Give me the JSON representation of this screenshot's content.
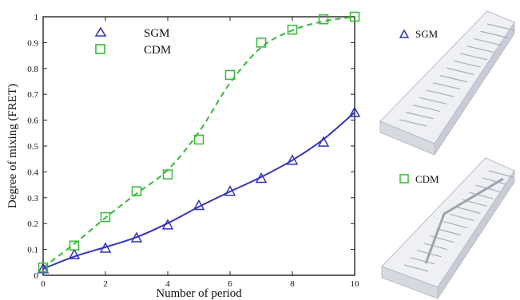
{
  "chart_data": {
    "type": "scatter",
    "xlabel": "Number of period",
    "ylabel": "Degree of mixing (FRET)",
    "xlim": [
      0,
      10
    ],
    "ylim": [
      0,
      1
    ],
    "x_ticks": [
      "0",
      "2",
      "4",
      "6",
      "8",
      "10"
    ],
    "y_ticks": [
      "0",
      "0.1",
      "0.2",
      "0.3",
      "0.4",
      "0.5",
      "0.6",
      "0.7",
      "0.8",
      "0.9",
      "1"
    ],
    "legend_position": "top-left",
    "series": [
      {
        "name": "SGM",
        "marker": "triangle",
        "color": "#3333bb",
        "fit_style": "solid",
        "x": [
          0,
          1,
          2,
          3,
          4,
          5,
          6,
          7,
          8,
          9,
          10
        ],
        "y": [
          0.025,
          0.08,
          0.105,
          0.145,
          0.195,
          0.27,
          0.325,
          0.375,
          0.445,
          0.515,
          0.63
        ]
      },
      {
        "name": "CDM",
        "marker": "square",
        "color": "#33bb33",
        "fit_style": "dashed",
        "x": [
          0,
          1,
          2,
          3,
          4,
          5,
          6,
          7,
          8,
          9,
          10
        ],
        "y": [
          0.03,
          0.115,
          0.225,
          0.325,
          0.39,
          0.525,
          0.775,
          0.9,
          0.95,
          0.99,
          1.0
        ]
      }
    ]
  },
  "inset_legends": {
    "top": "SGM",
    "bottom": "CDM"
  }
}
